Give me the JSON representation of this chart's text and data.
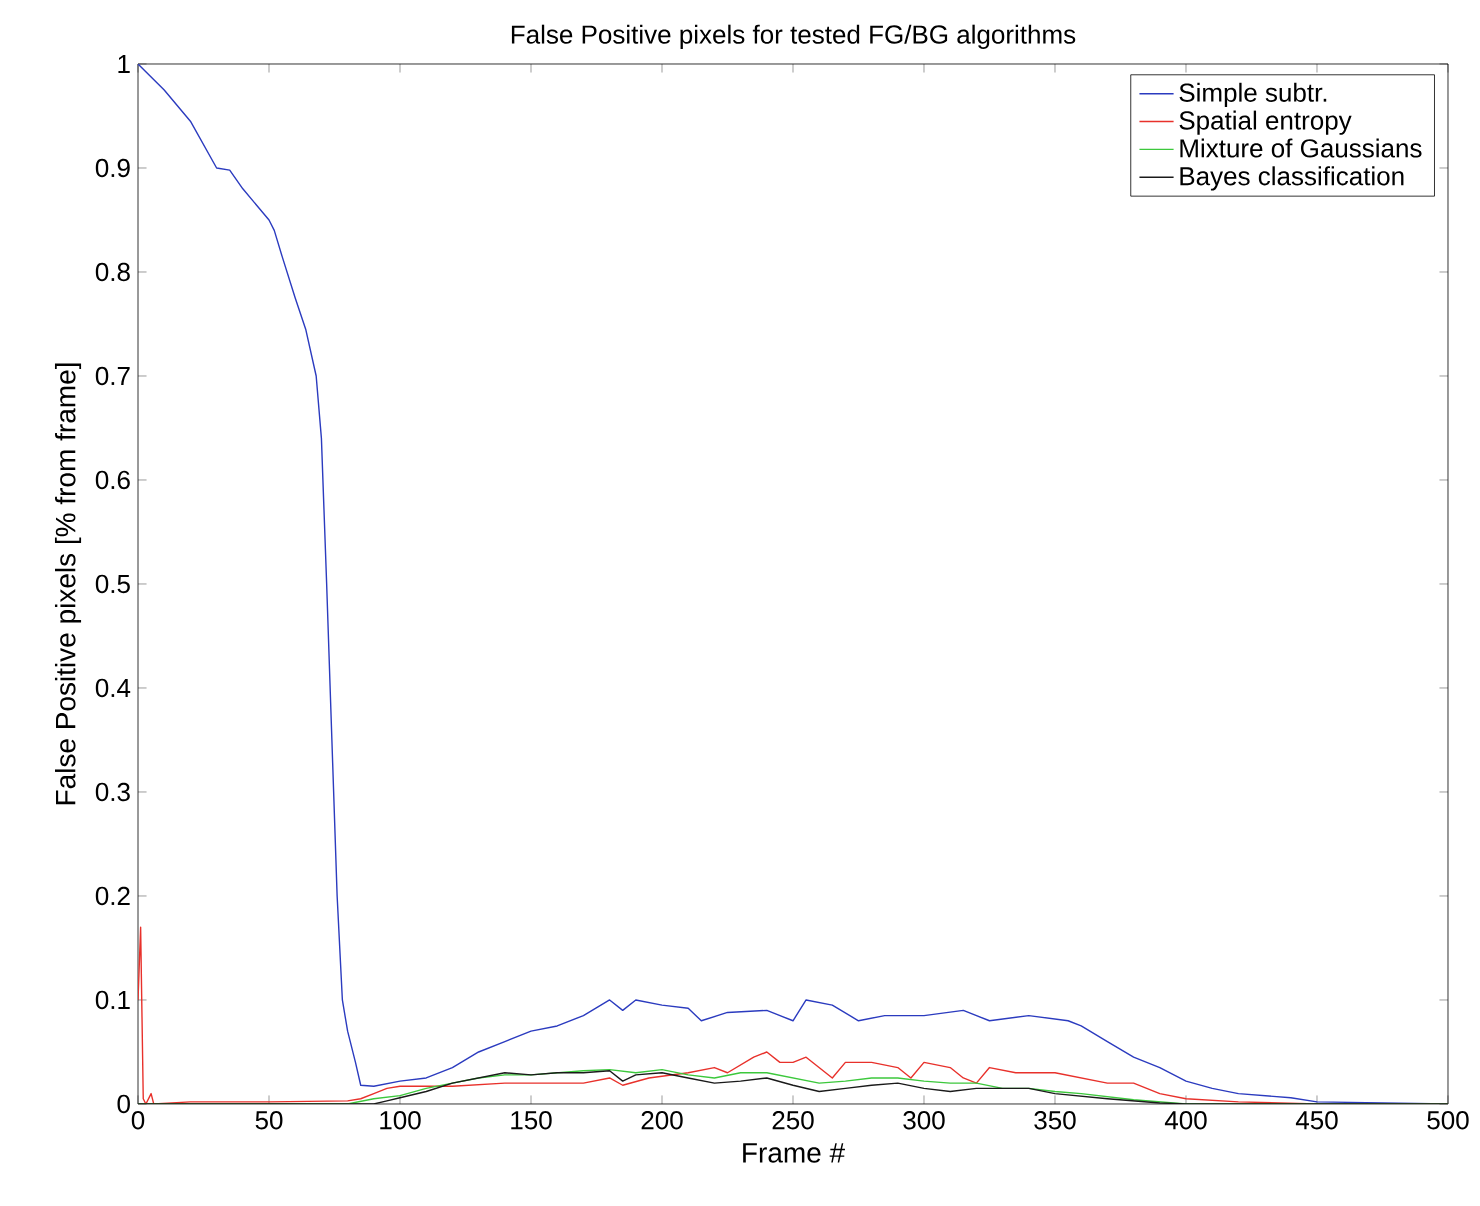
{
  "chart_data": {
    "type": "line",
    "title": "False Positive pixels for tested FG/BG algorithms",
    "xlabel": "Frame #",
    "ylabel": "False Positive pixels [% from frame]",
    "xlim": [
      0,
      500
    ],
    "ylim": [
      0,
      1
    ],
    "xticks": [
      0,
      50,
      100,
      150,
      200,
      250,
      300,
      350,
      400,
      450,
      500
    ],
    "yticks": [
      0,
      0.1,
      0.2,
      0.3,
      0.4,
      0.5,
      0.6,
      0.7,
      0.8,
      0.9,
      1
    ],
    "grid": false,
    "legend": "top right",
    "marker": "none",
    "line_style": "solid",
    "series": [
      {
        "name": "Simple subtr.",
        "color": "#2b3bbf",
        "x": [
          0,
          10,
          20,
          30,
          35,
          40,
          50,
          52,
          55,
          60,
          64,
          68,
          70,
          72,
          74,
          76,
          78,
          80,
          83,
          85,
          90,
          100,
          110,
          120,
          130,
          140,
          150,
          160,
          170,
          180,
          185,
          190,
          200,
          210,
          215,
          225,
          240,
          250,
          255,
          265,
          275,
          285,
          300,
          315,
          325,
          340,
          355,
          360,
          370,
          380,
          390,
          400,
          410,
          420,
          440,
          450,
          500
        ],
        "values": [
          1.0,
          0.975,
          0.945,
          0.9,
          0.898,
          0.88,
          0.85,
          0.84,
          0.815,
          0.775,
          0.745,
          0.7,
          0.64,
          0.5,
          0.35,
          0.2,
          0.1,
          0.07,
          0.04,
          0.018,
          0.017,
          0.022,
          0.025,
          0.035,
          0.05,
          0.06,
          0.07,
          0.075,
          0.085,
          0.1,
          0.09,
          0.1,
          0.095,
          0.092,
          0.08,
          0.088,
          0.09,
          0.08,
          0.1,
          0.095,
          0.08,
          0.085,
          0.085,
          0.09,
          0.08,
          0.085,
          0.08,
          0.075,
          0.06,
          0.045,
          0.035,
          0.022,
          0.015,
          0.01,
          0.006,
          0.002,
          0
        ]
      },
      {
        "name": "Spatial entropy",
        "color": "#e8312b",
        "x": [
          0,
          1,
          2,
          3,
          5,
          6,
          20,
          50,
          80,
          85,
          90,
          95,
          100,
          120,
          140,
          150,
          160,
          170,
          180,
          185,
          195,
          210,
          220,
          225,
          235,
          240,
          245,
          250,
          255,
          260,
          265,
          270,
          280,
          290,
          295,
          300,
          310,
          315,
          320,
          325,
          335,
          350,
          360,
          370,
          380,
          390,
          400,
          420,
          450,
          500
        ],
        "values": [
          0.1,
          0.17,
          0.005,
          0,
          0.01,
          0,
          0.002,
          0.002,
          0.003,
          0.005,
          0.01,
          0.015,
          0.017,
          0.017,
          0.02,
          0.02,
          0.02,
          0.02,
          0.025,
          0.018,
          0.025,
          0.03,
          0.035,
          0.03,
          0.045,
          0.05,
          0.04,
          0.04,
          0.045,
          0.035,
          0.025,
          0.04,
          0.04,
          0.035,
          0.025,
          0.04,
          0.035,
          0.025,
          0.02,
          0.035,
          0.03,
          0.03,
          0.025,
          0.02,
          0.02,
          0.01,
          0.005,
          0.002,
          0,
          0
        ]
      },
      {
        "name": "Mixture of Gaussians",
        "color": "#3cc83c",
        "x": [
          0,
          80,
          90,
          100,
          110,
          120,
          130,
          140,
          150,
          160,
          170,
          180,
          190,
          200,
          210,
          220,
          230,
          240,
          250,
          260,
          270,
          280,
          290,
          300,
          310,
          320,
          330,
          340,
          350,
          360,
          380,
          400,
          500
        ],
        "values": [
          0,
          0,
          0.005,
          0.008,
          0.015,
          0.02,
          0.025,
          0.028,
          0.028,
          0.03,
          0.032,
          0.033,
          0.03,
          0.033,
          0.028,
          0.025,
          0.03,
          0.03,
          0.025,
          0.02,
          0.022,
          0.025,
          0.025,
          0.022,
          0.02,
          0.02,
          0.015,
          0.015,
          0.012,
          0.01,
          0.004,
          0,
          0
        ]
      },
      {
        "name": "Bayes classification",
        "color": "#1a1a1a",
        "x": [
          0,
          90,
          95,
          100,
          110,
          120,
          130,
          140,
          150,
          160,
          170,
          180,
          185,
          190,
          200,
          210,
          220,
          230,
          240,
          250,
          260,
          270,
          280,
          290,
          300,
          310,
          320,
          330,
          340,
          350,
          370,
          390,
          400,
          500
        ],
        "values": [
          0,
          0,
          0.003,
          0.006,
          0.012,
          0.02,
          0.025,
          0.03,
          0.028,
          0.03,
          0.03,
          0.032,
          0.022,
          0.028,
          0.03,
          0.025,
          0.02,
          0.022,
          0.025,
          0.018,
          0.012,
          0.015,
          0.018,
          0.02,
          0.015,
          0.012,
          0.015,
          0.015,
          0.015,
          0.01,
          0.005,
          0.001,
          0,
          0
        ]
      }
    ]
  }
}
